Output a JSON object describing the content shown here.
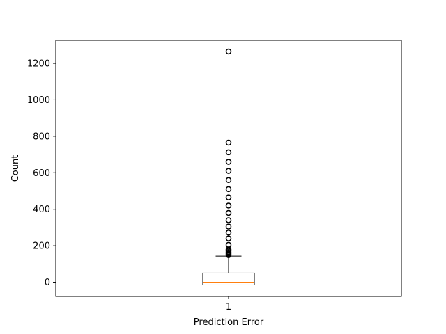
{
  "chart_data": {
    "type": "boxplot",
    "title": "",
    "xlabel": "Prediction Error",
    "ylabel": "Count",
    "categories": [
      "1"
    ],
    "ylim": [
      -78,
      1326
    ],
    "yticks": [
      0,
      200,
      400,
      600,
      800,
      1000,
      1200
    ],
    "grid": false,
    "box": {
      "q1": -15,
      "median": 0,
      "q3": 50,
      "whisker_low": -15,
      "whisker_high": 143
    },
    "outliers": [
      148,
      152,
      158,
      165,
      172,
      180,
      205,
      240,
      272,
      305,
      340,
      380,
      420,
      465,
      510,
      560,
      610,
      660,
      712,
      765,
      1265
    ],
    "colors": {
      "box": "#000000",
      "median": "#ff7f0e",
      "outlier_edge": "#000000"
    }
  }
}
